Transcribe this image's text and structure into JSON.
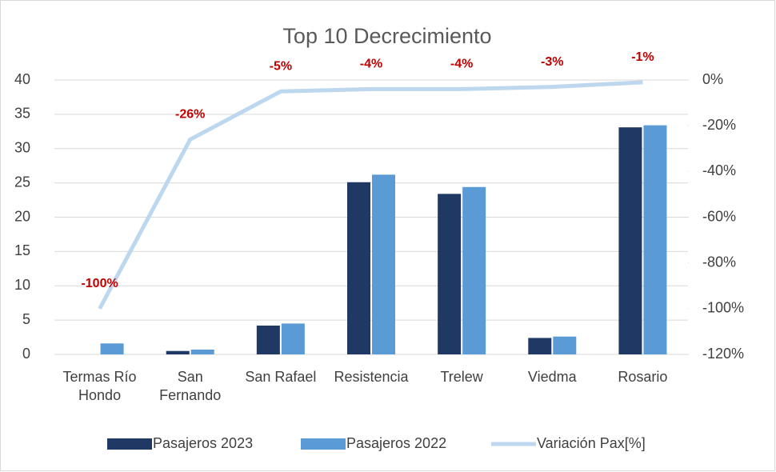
{
  "chart_data": {
    "type": "bar",
    "title": "Top 10 Decrecimiento",
    "categories": [
      "Termas Río Hondo",
      "San Fernando",
      "San Rafael",
      "Resistencia",
      "Trelew",
      "Viedma",
      "Rosario"
    ],
    "series": [
      {
        "name": "Pasajeros 2023",
        "color": "#203864",
        "values": [
          0,
          0.5,
          4.2,
          25.1,
          23.4,
          2.4,
          33.1
        ]
      },
      {
        "name": "Pasajeros 2022",
        "color": "#5b9bd5",
        "values": [
          1.6,
          0.7,
          4.5,
          26.2,
          24.4,
          2.6,
          33.4
        ]
      },
      {
        "name": "Variación Pax[%]",
        "color": "#bdd7ee",
        "type": "line",
        "axis": "y2",
        "values": [
          -100,
          -26,
          -5,
          -4,
          -4,
          -3,
          -1
        ],
        "value_labels": [
          "-100%",
          "-26%",
          "-5%",
          "-4%",
          "-4%",
          "-3%",
          "-1%"
        ],
        "label_color": "#c00000"
      }
    ],
    "ylim": [
      0,
      40
    ],
    "yticks": [
      0,
      5,
      10,
      15,
      20,
      25,
      30,
      35,
      40
    ],
    "y2lim": [
      -120,
      0
    ],
    "y2ticks": [
      {
        "value": -120,
        "label": "-120%"
      },
      {
        "value": -100,
        "label": "-100%"
      },
      {
        "value": -80,
        "label": "-80%"
      },
      {
        "value": -60,
        "label": "-60%"
      },
      {
        "value": -40,
        "label": "-40%"
      },
      {
        "value": -20,
        "label": "-20%"
      },
      {
        "value": 0,
        "label": "0%"
      }
    ],
    "grid": true,
    "legend": "bottom"
  }
}
